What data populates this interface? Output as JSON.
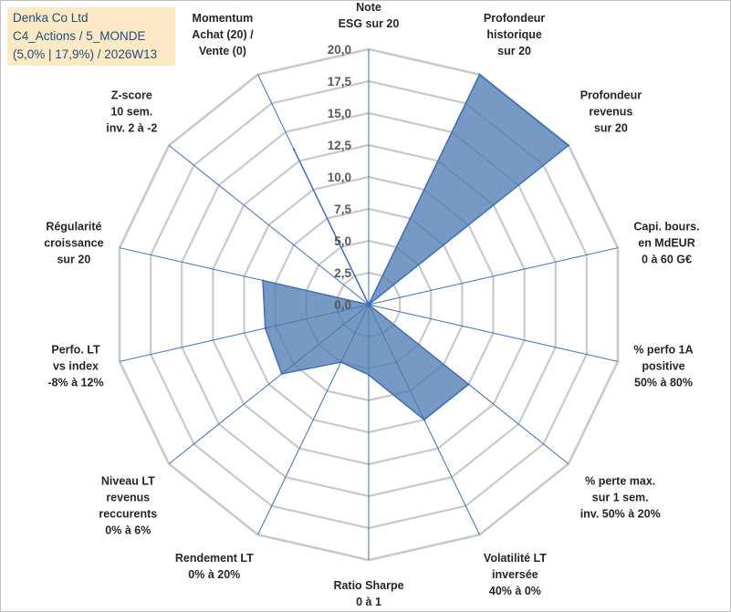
{
  "title_box": {
    "line1": "Denka Co Ltd",
    "line2": "C4_Actions / 5_MONDE",
    "line3": "(5,0% | 17,9%) / 2026W13",
    "background": "#fde9c5",
    "text_color": "#1f4e79"
  },
  "chart_data": {
    "type": "radar",
    "rmin": 0,
    "rmax": 20,
    "ticks": [
      "0,0",
      "2,5",
      "5,0",
      "7,5",
      "10,0",
      "12,5",
      "15,0",
      "17,5",
      "20,0"
    ],
    "axes": [
      [
        "Note",
        "ESG sur 20"
      ],
      [
        "Profondeur",
        "historique",
        "sur 20"
      ],
      [
        "Profondeur",
        "revenus",
        "sur 20"
      ],
      [
        "Capi. bours.",
        "en MdEUR",
        "0 à 60 G€"
      ],
      [
        "% perfo 1A",
        "positive",
        "50% à 80%"
      ],
      [
        "% perte max.",
        "sur 1 sem.",
        "inv. 50% à 20%"
      ],
      [
        "Volatilité LT",
        "inversée",
        "40% à 0%"
      ],
      [
        "Ratio Sharpe",
        "0 à 1"
      ],
      [
        "Rendement LT",
        "0% à 20%"
      ],
      [
        "Niveau LT",
        "revenus",
        "reccurents",
        "0% à 6%"
      ],
      [
        "Perfo. LT",
        "vs index",
        "-8% à 12%"
      ],
      [
        "Régularité",
        "croissance",
        "sur 20"
      ],
      [
        "Z-score",
        "10 sem.",
        "inv. 2 à -2"
      ],
      [
        "Momentum",
        "Achat (20) /",
        "Vente (0)"
      ]
    ],
    "series": [
      {
        "name": "Denka Co Ltd",
        "values": [
          0,
          20,
          20,
          0,
          0,
          10,
          10,
          5.5,
          5,
          8.7,
          8.3,
          8.5,
          0,
          13.5
        ],
        "fill": "#4a78b0",
        "stroke": "#3f6fb5"
      }
    ],
    "grid_color": "#c9c9c9",
    "axis_color": "#3f6fb5",
    "legend": "none"
  }
}
